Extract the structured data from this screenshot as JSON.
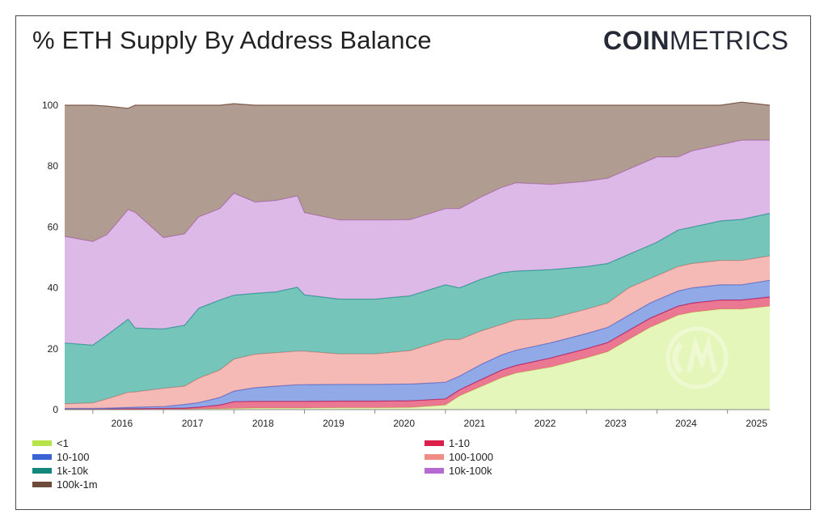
{
  "title": "% ETH Supply By Address Balance",
  "logo": {
    "bold": "COIN",
    "light": "METRICS"
  },
  "chart_data": {
    "type": "area",
    "stacked": true,
    "title": "% ETH Supply By Address Balance",
    "ylim": [
      0,
      100
    ],
    "yticks": [
      0,
      20,
      40,
      60,
      80,
      100
    ],
    "xticks": [
      "2016",
      "2017",
      "2018",
      "2019",
      "2020",
      "2021",
      "2022",
      "2023",
      "2024",
      "2025"
    ],
    "xrange": [
      2015.6,
      2025.6
    ],
    "grid": false,
    "legend_position": "bottom",
    "x": [
      2015.6,
      2016.0,
      2016.2,
      2016.5,
      2016.6,
      2017.0,
      2017.3,
      2017.5,
      2017.8,
      2018.0,
      2018.3,
      2018.6,
      2018.9,
      2019.0,
      2019.5,
      2020.0,
      2020.5,
      2021.0,
      2021.2,
      2021.5,
      2021.8,
      2022.0,
      2022.5,
      2023.0,
      2023.3,
      2023.6,
      2023.9,
      2024.0,
      2024.3,
      2024.5,
      2024.9,
      2025.2,
      2025.6
    ],
    "series": [
      {
        "name": "<1",
        "color": "#d4f08c",
        "values": [
          0.0,
          0.0,
          0.0,
          0.0,
          0.0,
          0.1,
          0.1,
          0.2,
          0.3,
          0.4,
          0.5,
          0.5,
          0.5,
          0.5,
          0.6,
          0.6,
          0.7,
          1.5,
          4.5,
          7.5,
          10.5,
          12,
          14,
          17,
          19,
          23,
          27,
          28,
          31,
          32,
          33,
          33,
          34
        ]
      },
      {
        "name": "1-10",
        "color": "#dc1e4a",
        "values": [
          0.2,
          0.2,
          0.2,
          0.3,
          0.3,
          0.3,
          0.4,
          0.6,
          1.2,
          2.2,
          2.2,
          2.2,
          2.2,
          2.2,
          2.2,
          2.2,
          2.2,
          2.0,
          2.0,
          2.3,
          2.5,
          2.5,
          3,
          3,
          3,
          3,
          3,
          3,
          3,
          3,
          3,
          3,
          3
        ]
      },
      {
        "name": "10-100",
        "color": "#4a6fd8",
        "values": [
          0.2,
          0.2,
          0.3,
          0.4,
          0.5,
          0.6,
          1.2,
          1.5,
          2.5,
          3.5,
          4.5,
          5,
          5.5,
          5.5,
          5.5,
          5.5,
          5.5,
          5.5,
          4.5,
          5,
          5,
          5,
          5,
          5,
          5,
          5,
          5,
          5,
          5,
          5,
          5,
          5,
          5.5
        ]
      },
      {
        "name": "100-1000",
        "color": "#f08c86",
        "values": [
          1.5,
          1.8,
          3,
          5,
          5,
          6,
          6,
          8,
          9,
          10.5,
          11,
          11,
          11,
          11,
          10,
          10,
          11,
          14,
          12,
          11,
          10,
          10,
          8,
          8,
          8,
          9,
          8,
          8,
          8,
          8,
          8,
          8,
          8
        ]
      },
      {
        "name": "1k-10k",
        "color": "#1a9e8c",
        "values": [
          20,
          19,
          21,
          24,
          21,
          19.5,
          20,
          23,
          23,
          21,
          20,
          20,
          21,
          18.5,
          18,
          18,
          18,
          18,
          17,
          17,
          17,
          16,
          16,
          14,
          13,
          11,
          11,
          11,
          12,
          12,
          13,
          13.5,
          14
        ]
      },
      {
        "name": "10k-100k",
        "color": "#c78ad8",
        "values": [
          35,
          34,
          33,
          36,
          38,
          30,
          30,
          30,
          30,
          33.5,
          30,
          30,
          30,
          27,
          26,
          26,
          25,
          25,
          26,
          27,
          28,
          29,
          28,
          28,
          28,
          28,
          28,
          28,
          24,
          25,
          25,
          26,
          24
        ]
      },
      {
        "name": "100k-1m",
        "color": "#7d5a4a",
        "values": [
          43.1,
          44.8,
          42.2,
          33.3,
          35.2,
          43.5,
          42.3,
          36.7,
          34,
          29.4,
          31.8,
          31.3,
          29.8,
          35.3,
          37.7,
          37.7,
          37.6,
          34,
          34,
          30.2,
          27,
          25.5,
          26,
          25,
          24,
          21,
          18,
          17,
          17,
          15,
          13,
          12.5,
          11.5
        ]
      }
    ]
  },
  "legend": {
    "items": [
      {
        "label": "<1",
        "color": "#b6e34a"
      },
      {
        "label": "1-10",
        "color": "#dc1e4a"
      },
      {
        "label": "10-100",
        "color": "#3b63d6"
      },
      {
        "label": "100-1000",
        "color": "#f08c86"
      },
      {
        "label": "1k-10k",
        "color": "#13877a"
      },
      {
        "label": "10k-100k",
        "color": "#b46ad0"
      },
      {
        "label": "100k-1m",
        "color": "#6e4c3a"
      }
    ]
  }
}
